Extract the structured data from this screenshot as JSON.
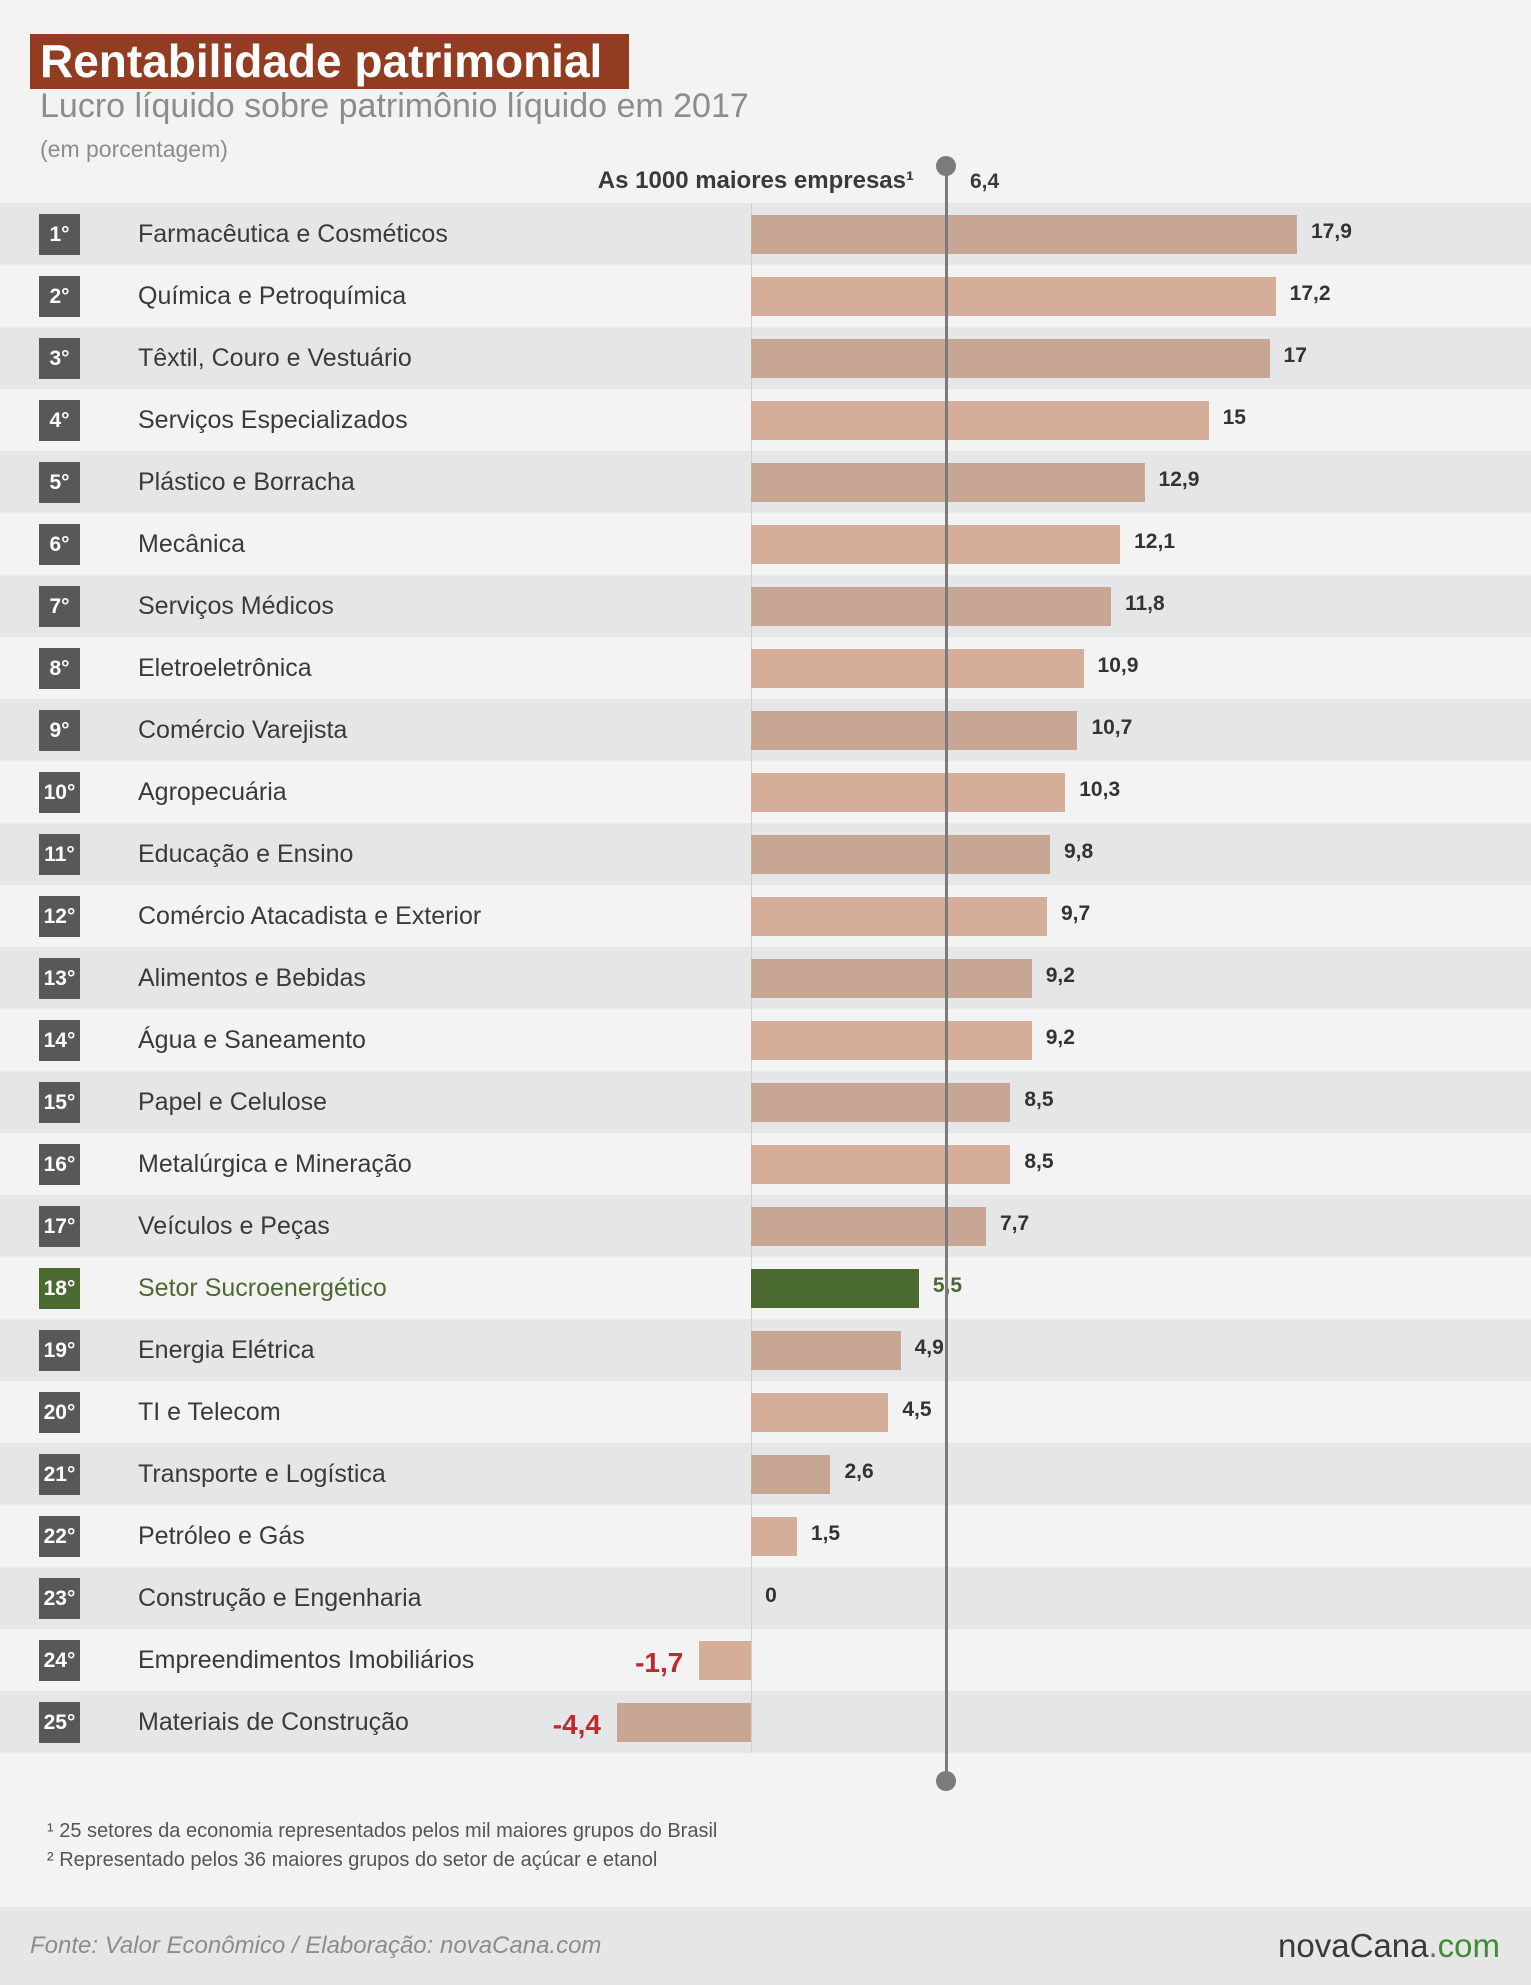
{
  "chart_data": {
    "type": "bar",
    "orientation": "horizontal",
    "title": "Rentabilidade patrimonial",
    "subtitle": "Lucro líquido sobre patrimônio líquido em 2017",
    "unit_note": "(em porcentagem)",
    "ranks": [
      "1°",
      "2°",
      "3°",
      "4°",
      "5°",
      "6°",
      "7°",
      "8°",
      "9°",
      "10°",
      "11°",
      "12°",
      "13°",
      "14°",
      "15°",
      "16°",
      "17°",
      "18°",
      "19°",
      "20°",
      "21°",
      "22°",
      "23°",
      "24°",
      "25°"
    ],
    "categories": [
      "Farmacêutica e Cosméticos",
      "Química e Petroquímica",
      "Têxtil, Couro e Vestuário",
      "Serviços Especializados",
      "Plástico e Borracha",
      "Mecânica",
      "Serviços Médicos",
      "Eletroeletrônica",
      "Comércio Varejista",
      "Agropecuária",
      "Educação e Ensino",
      "Comércio Atacadista e Exterior",
      "Alimentos e Bebidas",
      "Água e Saneamento",
      "Papel e Celulose",
      "Metalúrgica e Mineração",
      "Veículos e Peças",
      "Setor Sucroenergético",
      "Energia Elétrica",
      "TI e Telecom",
      "Transporte e Logística",
      "Petróleo e Gás",
      "Construção e Engenharia",
      "Empreendimentos Imobiliários",
      "Materiais de Construção"
    ],
    "values": [
      17.9,
      17.2,
      17,
      15,
      12.9,
      12.1,
      11.8,
      10.9,
      10.7,
      10.3,
      9.8,
      9.7,
      9.2,
      9.2,
      8.5,
      8.5,
      7.7,
      5.5,
      4.9,
      4.5,
      2.6,
      1.5,
      0,
      -1.7,
      -4.4
    ],
    "highlight": "Setor Sucroenergético",
    "reference_line": {
      "label": "As 1000 maiores empresas¹",
      "value": 6.4
    },
    "xlim": [
      -4.4,
      17.9
    ],
    "grid": false
  },
  "footnotes": [
    "¹ 25 setores da economia representados pelos mil maiores grupos do Brasil",
    "² Representado pelos 36 maiores grupos do setor de açúcar e etanol"
  ],
  "source": "Fonte: Valor Econômico / Elaboração: novaCana.com",
  "logo": {
    "main": "novaCana",
    "suffix": ".com"
  },
  "colors": {
    "title_bg": "#923c22",
    "bar": "#c8a694",
    "bar_alt": "#d4ae98",
    "highlight": "#4b6a31",
    "negative_value": "#c1272d",
    "rank_badge": "#585858",
    "reference_line": "#7b7b7b",
    "stripe": "#e5e6e8",
    "logo_accent": "#3f8d35"
  }
}
